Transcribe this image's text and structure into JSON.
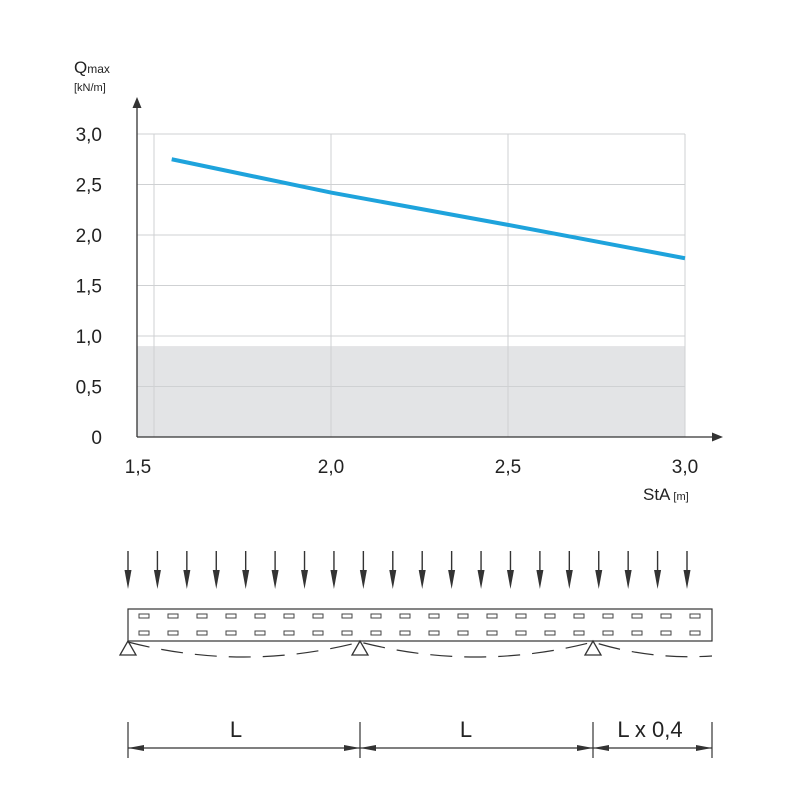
{
  "chart_data": {
    "type": "line",
    "y_label_main": "Q",
    "y_label_sub": "max",
    "y_unit": "[kN/m]",
    "x_label": "StA",
    "x_unit": "[m]",
    "xlim": [
      1.5,
      3.0
    ],
    "ylim": [
      0,
      3.0
    ],
    "x_ticks": [
      1.5,
      2.0,
      2.5,
      3.0
    ],
    "x_tick_labels": [
      "1,5",
      "2,0",
      "2,5",
      "3,0"
    ],
    "y_ticks": [
      0,
      0.5,
      1.0,
      1.5,
      2.0,
      2.5,
      3.0
    ],
    "y_tick_labels": [
      "0",
      "0,5",
      "1,0",
      "1,5",
      "2,0",
      "2,5",
      "3,0"
    ],
    "grid": true,
    "shaded_band": {
      "from": 0,
      "to": 0.9,
      "color": "#e3e4e6"
    },
    "series": [
      {
        "x": [
          1.55,
          2.0,
          2.5,
          3.0
        ],
        "y": [
          2.75,
          2.42,
          2.1,
          1.77
        ],
        "color": "#1ea3dc"
      }
    ]
  },
  "diagram": {
    "load_arrow_count": 20,
    "span_labels": [
      "L",
      "L",
      "L x 0,4"
    ]
  }
}
